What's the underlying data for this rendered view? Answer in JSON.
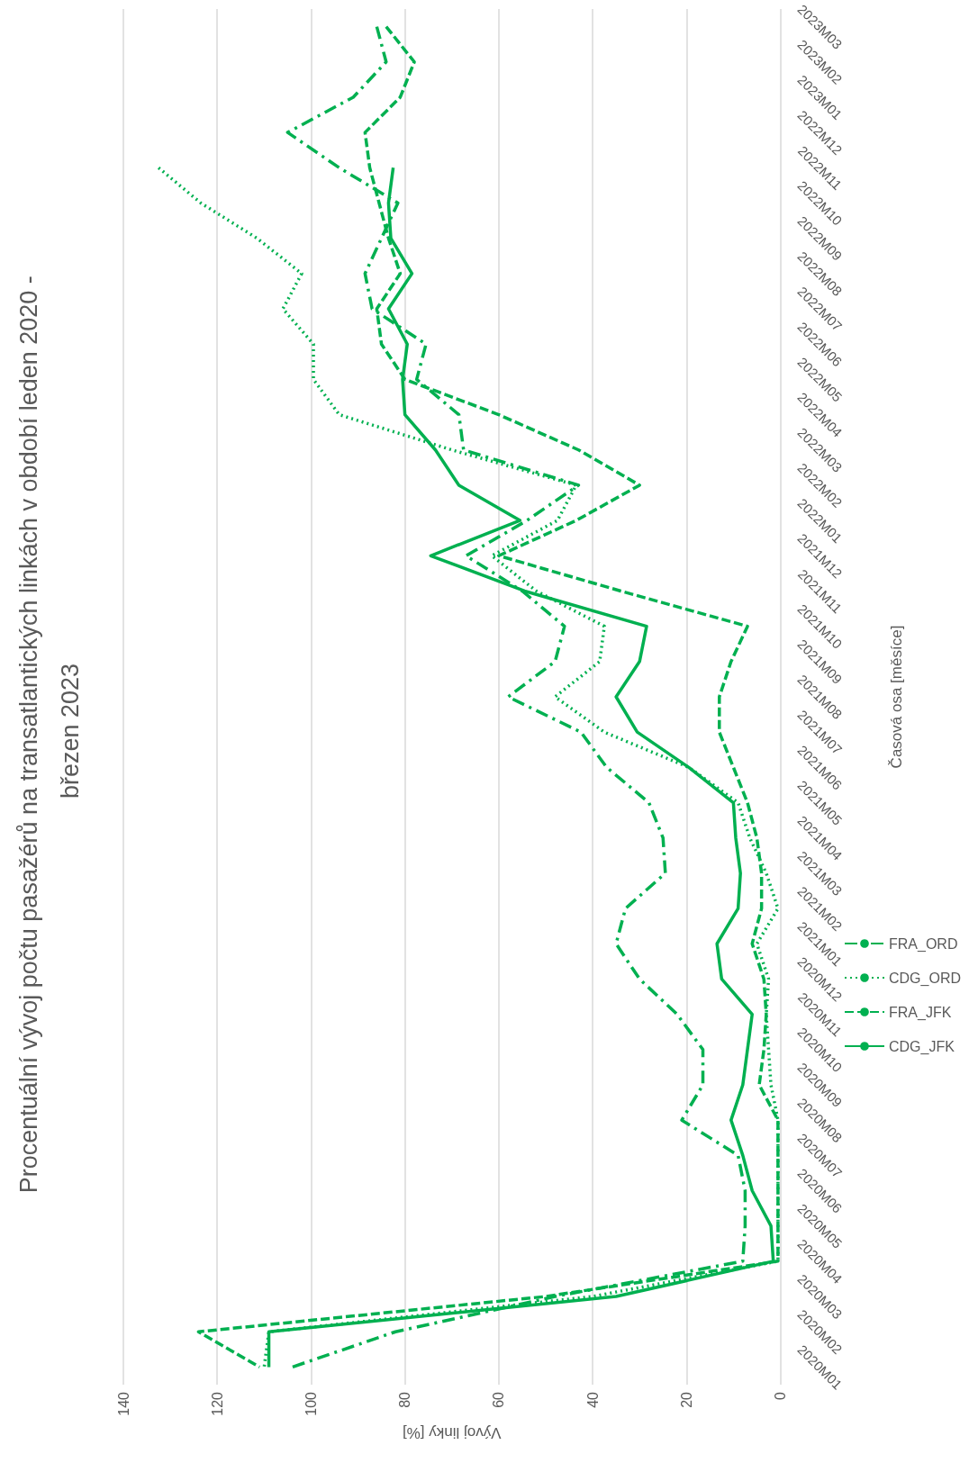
{
  "chart_data": {
    "type": "line",
    "orientation": "horizontal",
    "title": "Procentuální vývoj počtu pasažérů na transatlantických linkách v období leden 2020 - březen 2023",
    "ylabel": "Časová osa [měsíce]",
    "xlabel": "Vývoj linky [%]",
    "categories": [
      "2023M03",
      "2023M02",
      "2023M01",
      "2022M12",
      "2022M11",
      "2022M10",
      "2022M09",
      "2022M08",
      "2022M07",
      "2022M06",
      "2022M05",
      "2022M04",
      "2022M03",
      "2022M02",
      "2022M01",
      "2021M12",
      "2021M11",
      "2021M10",
      "2021M09",
      "2021M08",
      "2021M07",
      "2021M06",
      "2021M05",
      "2021M04",
      "2021M03",
      "2021M02",
      "2021M01",
      "2020M12",
      "2020M11",
      "2020M10",
      "2020M09",
      "2020M08",
      "2020M07",
      "2020M06",
      "2020M05",
      "2020M04",
      "2020M03",
      "2020M02",
      "2020M01"
    ],
    "series": [
      {
        "name": "CDG_JFK",
        "color": "#00b050",
        "line_style": "solid",
        "values": [
          null,
          null,
          null,
          null,
          82.5,
          83.5,
          83,
          78.5,
          83.5,
          79.5,
          80.5,
          80,
          73.5,
          68.5,
          55.5,
          74.5,
          54.5,
          28.5,
          30,
          35,
          30.5,
          19.5,
          10,
          9.5,
          8.5,
          9,
          13.5,
          12.5,
          6,
          7,
          8,
          10.5,
          8,
          6,
          2,
          1.5,
          35,
          109,
          109
        ]
      },
      {
        "name": "FRA_JFK",
        "color": "#00b050",
        "line_style": "dashed",
        "values": [
          84,
          78,
          81,
          88.5,
          87.5,
          85.5,
          83.5,
          81,
          86,
          85,
          80,
          60,
          43,
          30,
          43.5,
          60,
          34,
          7,
          10.5,
          13,
          13,
          10,
          7,
          5,
          4,
          4,
          6,
          3.5,
          3,
          3.5,
          4.5,
          0.5,
          0.5,
          0.5,
          0.5,
          0.5,
          50,
          124,
          111
        ]
      },
      {
        "name": "CDG_ORD",
        "color": "#00b050",
        "line_style": "dotted",
        "values": [
          null,
          null,
          null,
          null,
          132.5,
          123.5,
          111.5,
          102,
          106,
          99.5,
          99.5,
          94,
          70,
          43.5,
          47.5,
          61.5,
          52,
          37.5,
          38.5,
          48,
          37.5,
          19.5,
          9,
          6.5,
          3,
          0.5,
          5,
          2.5,
          3,
          2.5,
          2,
          0.5,
          0.5,
          0.5,
          0.5,
          0.5,
          40,
          109,
          110
        ]
      },
      {
        "name": "FRA_ORD",
        "color": "#00b050",
        "line_style": "dashdot",
        "values": [
          86,
          84,
          91,
          105,
          94,
          81.5,
          85,
          88.5,
          87,
          75.5,
          77.5,
          68.5,
          67.5,
          43,
          54,
          67,
          55,
          46,
          48,
          58,
          42.5,
          37,
          28,
          25,
          24.5,
          33,
          35,
          30,
          22,
          16.5,
          16.5,
          21,
          9,
          7.5,
          7.5,
          8,
          48,
          82,
          104
        ]
      }
    ],
    "xlim": [
      140,
      0
    ],
    "xticks": [
      0,
      20,
      40,
      60,
      80,
      100,
      120,
      140
    ],
    "grid": "x",
    "legend": "bottom right",
    "marker": "none"
  }
}
